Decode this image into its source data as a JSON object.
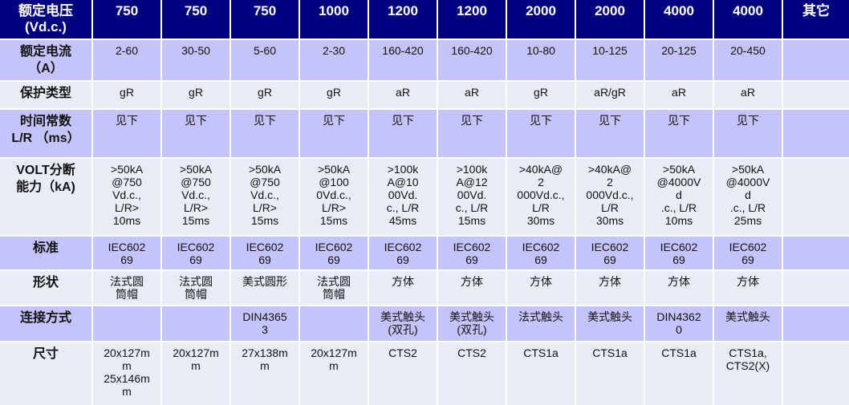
{
  "header": {
    "label": "额定电压\n(Vd.c.)",
    "columns": [
      "750",
      "750",
      "750",
      "1000",
      "1200",
      "1200",
      "2000",
      "2000",
      "4000",
      "4000",
      "其它"
    ]
  },
  "rows": [
    {
      "label": "额定电流\n（A）",
      "values": [
        "2-60",
        "30-50",
        "5-60",
        "2-30",
        "160-420",
        "160-420",
        "10-80",
        "10-125",
        "20-125",
        "20-450",
        ""
      ]
    },
    {
      "label": "保护类型",
      "values": [
        "gR",
        "gR",
        "gR",
        "gR",
        "aR",
        "aR",
        "gR",
        "aR/gR",
        "aR",
        "aR",
        ""
      ]
    },
    {
      "label": "时间常数\nL/R （ms）",
      "values": [
        "见下",
        "见下",
        "见下",
        "见下",
        "见下",
        "见下",
        "见下",
        "见下",
        "见下",
        "见下",
        ""
      ]
    },
    {
      "label": "VOLT分断\n能力（kA)",
      "values": [
        ">50kA\n@750\nVd.c.,\nL/R>\n10ms",
        ">50kA\n@750\nVd.c.,\nL/R>\n15ms",
        ">50kA\n@750\nVd.c.,\nL/R>\n15ms",
        ">50kA\n@100\n0Vd.c.,\nL/R>\n15ms",
        ">100k\nA@10\n00Vd.\nc., L/R\n45ms",
        ">100k\nA@12\n00Vd.\nc., L/R\n15ms",
        ">40kA@\n2\n000Vd.c.,\nL/R\n30ms",
        ">40kA@\n2\n000Vd.c.,\nL/R\n30ms",
        ">50kA\n@4000V\nd\n.c., L/R\n10ms",
        ">50kA\n@4000V\nd\n.c., L/R\n25ms",
        ""
      ]
    },
    {
      "label": "标准",
      "values": [
        "IEC602\n69",
        "IEC602\n69",
        "IEC602\n69",
        "IEC602\n69",
        "IEC602\n69",
        "IEC602\n69",
        "IEC602\n69",
        "IEC602\n69",
        "IEC602\n69",
        "IEC602\n69",
        ""
      ]
    },
    {
      "label": "形状",
      "values": [
        "法式圆\n筒帽",
        "法式圆\n筒帽",
        "美式圆形",
        "法式圆\n筒帽",
        "方体",
        "方体",
        "方体",
        "方体",
        "方体",
        "方体",
        ""
      ]
    },
    {
      "label": "连接方式",
      "values": [
        "",
        "",
        "DIN4365\n3",
        "",
        "美式触头\n(双孔)",
        "美式触头\n(双孔)",
        "法式触头",
        "美式触头",
        "DIN4362\n0",
        "美式触头",
        ""
      ]
    },
    {
      "label": "尺寸",
      "values": [
        "20x127m\nm\n25x146m\nm",
        "20x127m\nm",
        "27x138m\nm",
        "20x127m\nm",
        "CTS2",
        "CTS2",
        "CTS1a",
        "CTS1a",
        "CTS1a",
        "CTS1a,\nCTS2(X)",
        ""
      ]
    }
  ],
  "colors": {
    "header": "#000080",
    "row_lavender": "#c4c4fa",
    "row_light": "#e8ecf4"
  }
}
